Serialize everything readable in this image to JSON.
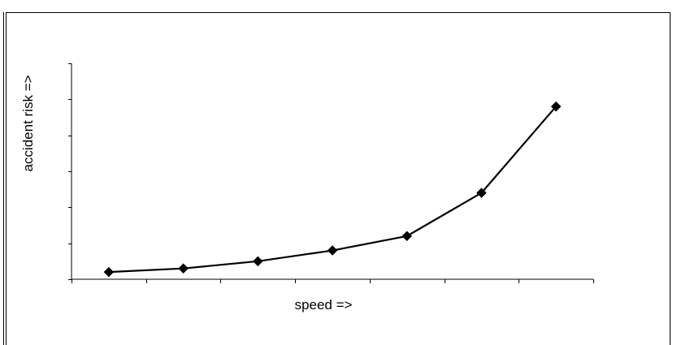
{
  "chart_data": {
    "type": "line",
    "title": "",
    "xlabel": "speed =>",
    "ylabel": "accident risk =>",
    "x": [
      1,
      2,
      3,
      4,
      5,
      6,
      7
    ],
    "series": [
      {
        "values": [
          0.2,
          0.3,
          0.5,
          0.8,
          1.2,
          2.4,
          4.8
        ]
      }
    ],
    "xlim": [
      0.5,
      7.5
    ],
    "ylim": [
      0,
      6
    ],
    "x_tick_labels": false,
    "y_tick_labels": false,
    "grid": false,
    "legend": "none",
    "marker": "diamond",
    "line_color": "#000000"
  }
}
